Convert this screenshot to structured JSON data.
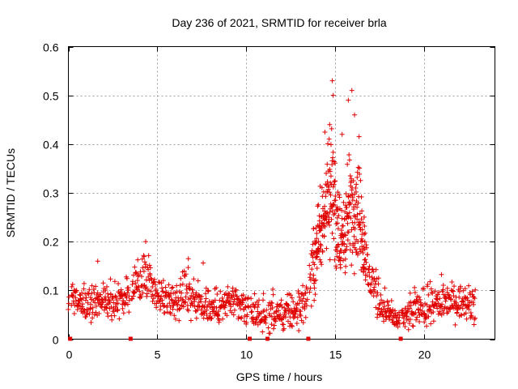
{
  "chart_data": {
    "type": "scatter",
    "title": "Day 236 of 2021, SRMTID for receiver brla",
    "xlabel": "GPS time / hours",
    "ylabel": "SRMTID / TECUs",
    "xlim": [
      0,
      24
    ],
    "ylim": [
      0,
      0.6
    ],
    "xticks": [
      0,
      5,
      10,
      15,
      20
    ],
    "xtick_labels": [
      "0",
      "5",
      "10",
      "15",
      "20"
    ],
    "yticks": [
      0,
      0.1,
      0.2,
      0.3,
      0.4,
      0.5,
      0.6
    ],
    "ytick_labels": [
      "0",
      "0.1",
      "0.2",
      "0.3",
      "0.4",
      "0.5",
      "0.6"
    ],
    "grid": true,
    "series": [
      {
        "name": "SRMTID",
        "marker": "plus",
        "color": "#e00000",
        "x_range": [
          0.0,
          22.9
        ],
        "envelope": [
          {
            "x": 0.0,
            "y": 0.08,
            "spread": 0.03
          },
          {
            "x": 1.0,
            "y": 0.07,
            "spread": 0.03
          },
          {
            "x": 2.0,
            "y": 0.08,
            "spread": 0.03
          },
          {
            "x": 3.0,
            "y": 0.08,
            "spread": 0.03
          },
          {
            "x": 3.7,
            "y": 0.1,
            "spread": 0.03
          },
          {
            "x": 4.3,
            "y": 0.13,
            "spread": 0.04
          },
          {
            "x": 5.0,
            "y": 0.09,
            "spread": 0.03
          },
          {
            "x": 6.0,
            "y": 0.08,
            "spread": 0.03
          },
          {
            "x": 6.7,
            "y": 0.1,
            "spread": 0.04
          },
          {
            "x": 7.5,
            "y": 0.07,
            "spread": 0.03
          },
          {
            "x": 8.5,
            "y": 0.06,
            "spread": 0.03
          },
          {
            "x": 9.0,
            "y": 0.08,
            "spread": 0.03
          },
          {
            "x": 10.0,
            "y": 0.06,
            "spread": 0.03
          },
          {
            "x": 11.0,
            "y": 0.05,
            "spread": 0.03
          },
          {
            "x": 12.0,
            "y": 0.05,
            "spread": 0.03
          },
          {
            "x": 13.0,
            "y": 0.06,
            "spread": 0.03
          },
          {
            "x": 13.5,
            "y": 0.1,
            "spread": 0.04
          },
          {
            "x": 14.0,
            "y": 0.2,
            "spread": 0.06
          },
          {
            "x": 14.5,
            "y": 0.27,
            "spread": 0.08
          },
          {
            "x": 14.9,
            "y": 0.3,
            "spread": 0.1
          },
          {
            "x": 15.3,
            "y": 0.18,
            "spread": 0.05
          },
          {
            "x": 15.8,
            "y": 0.27,
            "spread": 0.09
          },
          {
            "x": 16.3,
            "y": 0.28,
            "spread": 0.09
          },
          {
            "x": 16.8,
            "y": 0.14,
            "spread": 0.05
          },
          {
            "x": 17.5,
            "y": 0.08,
            "spread": 0.03
          },
          {
            "x": 18.0,
            "y": 0.05,
            "spread": 0.02
          },
          {
            "x": 18.7,
            "y": 0.04,
            "spread": 0.02
          },
          {
            "x": 19.5,
            "y": 0.06,
            "spread": 0.03
          },
          {
            "x": 20.5,
            "y": 0.07,
            "spread": 0.03
          },
          {
            "x": 21.5,
            "y": 0.08,
            "spread": 0.03
          },
          {
            "x": 22.9,
            "y": 0.07,
            "spread": 0.03
          }
        ],
        "outliers": [
          {
            "x": 4.35,
            "y": 0.2
          },
          {
            "x": 1.65,
            "y": 0.16
          },
          {
            "x": 6.75,
            "y": 0.165
          },
          {
            "x": 14.85,
            "y": 0.53
          },
          {
            "x": 14.9,
            "y": 0.5
          },
          {
            "x": 15.95,
            "y": 0.51
          },
          {
            "x": 15.75,
            "y": 0.49
          },
          {
            "x": 14.7,
            "y": 0.44
          },
          {
            "x": 16.1,
            "y": 0.46
          },
          {
            "x": 15.4,
            "y": 0.42
          }
        ]
      }
    ],
    "gap_markers_x": [
      0.1,
      3.5,
      10.2,
      11.2,
      13.5,
      18.7
    ]
  }
}
